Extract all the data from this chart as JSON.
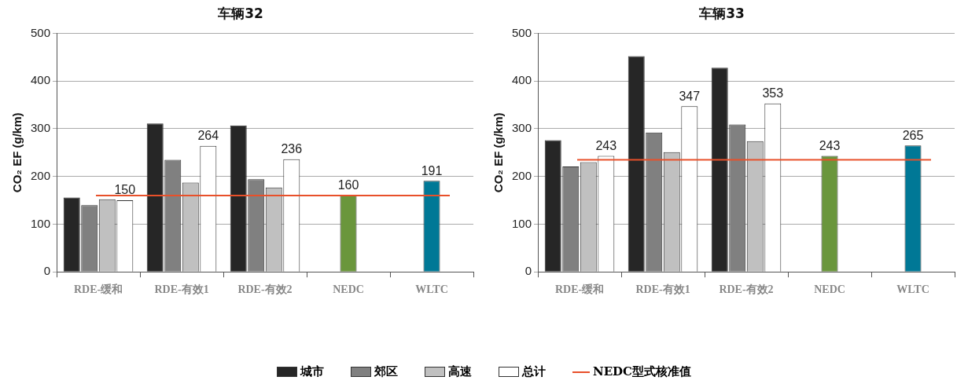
{
  "chart_data": [
    {
      "type": "bar",
      "title": "车辆32",
      "ylabel": "CO₂ EF (g/km)",
      "categories": [
        "RDE-缓和",
        "RDE-有效1",
        "RDE-有效2",
        "NEDC",
        "WLTC"
      ],
      "series": [
        {
          "name": "城市",
          "color": "#262626",
          "values": [
            156,
            311,
            307,
            null,
            null
          ]
        },
        {
          "name": "郊区",
          "color": "#808080",
          "values": [
            140,
            235,
            194,
            null,
            null
          ]
        },
        {
          "name": "高速",
          "color": "#c0c0c0",
          "values": [
            152,
            187,
            177,
            null,
            null
          ]
        },
        {
          "name": "总计",
          "color": "#ffffff",
          "values": [
            150,
            264,
            236,
            null,
            null
          ],
          "value_labels": [
            "150",
            "264",
            "236",
            null,
            null
          ]
        },
        {
          "colors": [
            "#6a963c",
            "#6a963c",
            "#6a963c",
            "#6a963c",
            "#007896"
          ],
          "values": [
            null,
            null,
            null,
            160,
            191
          ],
          "value_labels": [
            null,
            null,
            null,
            "160",
            "191"
          ]
        }
      ],
      "ylim": [
        0,
        500
      ],
      "yticks": [
        0,
        100,
        200,
        300,
        400,
        500
      ],
      "grid": "y",
      "legend": "bottom",
      "ref_lines": [
        {
          "axis": "y",
          "value": 160,
          "label": "NEDC型式核准值",
          "color": "#e8502a"
        }
      ]
    },
    {
      "type": "bar",
      "title": "车辆33",
      "ylabel": "CO₂ EF (g/km)",
      "categories": [
        "RDE-缓和",
        "RDE-有效1",
        "RDE-有效2",
        "NEDC",
        "WLTC"
      ],
      "series": [
        {
          "color": "#262626",
          "values": [
            276,
            452,
            428,
            null,
            null
          ]
        },
        {
          "color": "#808080",
          "values": [
            221,
            292,
            309,
            null,
            null
          ]
        },
        {
          "color": "#c0c0c0",
          "values": [
            230,
            251,
            274,
            null,
            null
          ]
        },
        {
          "color": "#ffffff",
          "values": [
            243,
            347,
            353,
            null,
            null
          ],
          "value_labels": [
            "243",
            "347",
            "353",
            null,
            null
          ]
        },
        {
          "colors": [
            "#6a963c",
            "#6a963c",
            "#6a963c",
            "#6a963c",
            "#007896"
          ],
          "values": [
            null,
            null,
            null,
            243,
            265
          ],
          "value_labels": [
            null,
            null,
            null,
            "243",
            "265"
          ]
        }
      ],
      "ylim": [
        0,
        500
      ],
      "yticks": [
        0,
        100,
        200,
        300,
        400,
        500
      ],
      "grid": "y",
      "ref_lines": [
        {
          "axis": "y",
          "value": 235,
          "color": "#e8502a"
        }
      ]
    }
  ]
}
